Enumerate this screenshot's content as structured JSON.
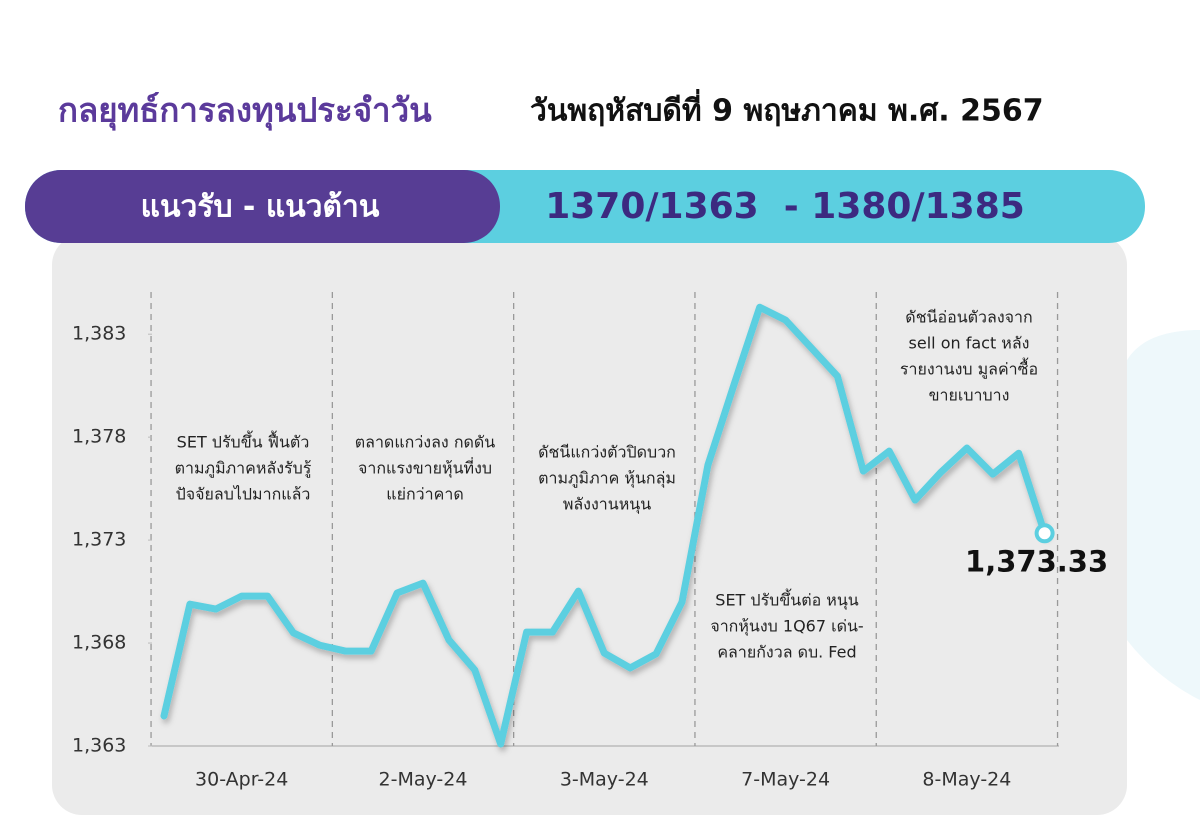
{
  "header": {
    "title": "กลยุทธ์การลงทุนประจำวัน",
    "date": "วันพฤหัสบดีที่ 9 พฤษภาคม พ.ศ. 2567",
    "banner_label": "แนวรับ - แนวต้าน",
    "banner_value": "1370/1363  - 1380/1385"
  },
  "chart_data": {
    "type": "line",
    "color": "#5ccfe0",
    "categories": [
      null,
      null,
      null,
      "30-Apr-24",
      null,
      null,
      null,
      null,
      null,
      null,
      "2-May-24",
      null,
      null,
      null,
      null,
      null,
      null,
      "3-May-24",
      null,
      null,
      null,
      null,
      null,
      null,
      "7-May-24",
      null,
      null,
      null,
      null,
      null,
      null,
      "8-May-24",
      null,
      null,
      null
    ],
    "values": [
      1364.46,
      1369.89,
      1369.65,
      1370.28,
      1370.28,
      1368.49,
      1367.9,
      1367.61,
      1367.61,
      1370.43,
      1370.91,
      1368.15,
      1366.69,
      1363.1,
      1368.53,
      1368.53,
      1370.52,
      1367.51,
      1366.79,
      1367.47,
      1369.99,
      1376.64,
      1380.52,
      1384.31,
      1383.68,
      1382.32,
      1380.96,
      1376.35,
      1377.32,
      1374.94,
      1376.3,
      1377.47,
      1376.2,
      1377.22,
      1373.33
    ],
    "value_labels": [
      null,
      null,
      null,
      null,
      null,
      null,
      null,
      null,
      null,
      null,
      null,
      null,
      null,
      null,
      null,
      null,
      null,
      null,
      null,
      null,
      null,
      null,
      null,
      null,
      null,
      null,
      null,
      null,
      null,
      null,
      null,
      null,
      null,
      null,
      "1,373.33"
    ],
    "ylim": [
      1363,
      1385
    ],
    "yticks": [
      {
        "value": 1363,
        "label": "1,363"
      },
      {
        "value": 1368,
        "label": "1,368"
      },
      {
        "value": 1373,
        "label": "1,373"
      },
      {
        "value": 1378,
        "label": "1,378"
      },
      {
        "value": 1383,
        "label": "1,383"
      }
    ],
    "annotations": [
      {
        "lines": [
          "SET ปรับขึ้น ฟื้นตัว",
          "ตามภูมิภาคหลังรับรู้",
          "ปัจจัยลบไปมากแล้ว"
        ]
      },
      {
        "lines": [
          "ตลาดแกว่งลง กดดัน",
          "จากแรงขายหุ้นที่งบ",
          "แย่กว่าคาด"
        ]
      },
      {
        "lines": [
          "ดัชนีแกว่งตัวปิดบวก",
          "ตามภูมิภาค หุ้นกลุ่ม",
          "พลังงานหนุน"
        ]
      },
      {
        "lines": [
          "SET ปรับขึ้นต่อ หนุน",
          "จากหุ้นงบ 1Q67 เด่น-",
          "คลายกังวล ดบ. Fed"
        ]
      },
      {
        "lines": [
          "ดัชนีอ่อนตัวลงจาก",
          "sell on fact หลัง",
          "รายงานงบ มูลค่าซื้อ",
          "ขายเบาบาง"
        ]
      }
    ]
  }
}
